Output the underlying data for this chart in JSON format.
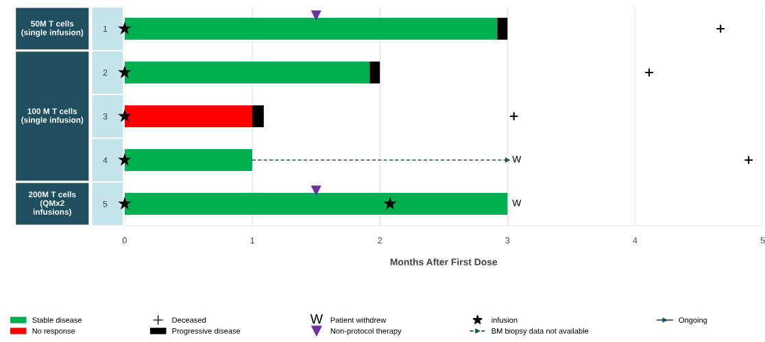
{
  "chart_data": {
    "type": "bar",
    "orientation": "horizontal",
    "stacked": true,
    "categories": [
      "1",
      "2",
      "3",
      "4",
      "5"
    ],
    "series": [
      {
        "name": "Stable disease",
        "color": "#00b050",
        "values": [
          2.92,
          1.92,
          0,
          1.0,
          3.0
        ]
      },
      {
        "name": "No response",
        "color": "#ff0000",
        "values": [
          0,
          0,
          1.0,
          0,
          0
        ]
      },
      {
        "name": "Deceased",
        "type": "scatter",
        "marker": "cross",
        "color": "#000000",
        "x": [
          "1",
          "2",
          "3",
          "4"
        ],
        "values": [
          4.67,
          4.11,
          3.05,
          4.89
        ]
      },
      {
        "name": "Progressive disease",
        "color": "#000000",
        "values": [
          0.08,
          0.08,
          0.09,
          null,
          null
        ]
      },
      {
        "name": "Patient withdrew",
        "type": "scatter",
        "marker": "none",
        "color": "#000000",
        "values": [
          null,
          null,
          null,
          null,
          null
        ]
      },
      {
        "name": "Non-protocol therapy",
        "type": "scatter",
        "marker": "triangle",
        "color": "#7030a0",
        "x": [
          "1",
          "5"
        ],
        "values": [
          1.5,
          1.5
        ]
      },
      {
        "name": "infusion",
        "type": "scatter",
        "marker": "star",
        "color": "#000000",
        "x": [
          "1",
          "2",
          "3",
          "4",
          "5",
          "5"
        ],
        "values": [
          0,
          0,
          0,
          0,
          0,
          2.08
        ]
      },
      {
        "name": "BM biopsy data not available",
        "type": "line",
        "line_style": "dashed",
        "color": "#1f4e5f",
        "x": [
          "4",
          "4"
        ],
        "values": [
          1.0,
          3.0
        ]
      },
      {
        "name": "Ongoing",
        "type": "line",
        "line_style": "solid",
        "color": "#1f4e5f",
        "values": [
          null,
          null,
          null,
          null,
          null
        ]
      }
    ],
    "xlim": [
      0,
      5
    ],
    "xticks": [
      0,
      1,
      2,
      3,
      4,
      5
    ],
    "xlabel": "Months After First Dose",
    "grid": "x",
    "legend": "bottom",
    "annotations": [
      "50M T cells\n(single infusion)",
      "100 M T cells\n(single infusion)",
      "200M T cells\n(QMx2\ninfusions)",
      {
        "text": "W",
        "x": 3.0,
        "y": "4"
      },
      {
        "text": "W",
        "x": 3.0,
        "y": "5"
      }
    ]
  }
}
